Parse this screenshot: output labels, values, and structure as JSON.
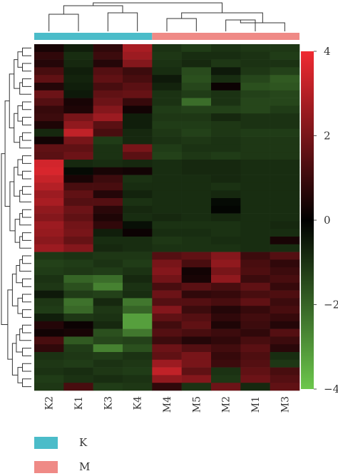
{
  "chart_data": {
    "type": "heatmap",
    "title": "",
    "xlabel": "",
    "ylabel": "",
    "columns": [
      "K2",
      "K1",
      "K3",
      "K4",
      "M4",
      "M5",
      "M2",
      "M1",
      "M3"
    ],
    "groups": [
      {
        "name": "K",
        "color": "#4bbcc9",
        "columns": [
          "K2",
          "K1",
          "K3",
          "K4"
        ]
      },
      {
        "name": "M",
        "color": "#ef8a86",
        "columns": [
          "M4",
          "M5",
          "M2",
          "M1",
          "M3"
        ]
      }
    ],
    "colorscale": {
      "min": -4,
      "max": 4,
      "ticks": [
        4,
        2,
        0,
        -2,
        -4
      ],
      "colors": {
        "high": "#f02a32",
        "mid": "#000000",
        "low": "#6cc74c"
      }
    },
    "rows": [
      {
        "values": [
          0.4,
          -0.6,
          0.8,
          2.8,
          -1.0,
          -1.2,
          -1.0,
          -1.1,
          -1.1
        ]
      },
      {
        "values": [
          0.8,
          -0.9,
          1.0,
          2.6,
          -1.1,
          -0.9,
          -0.9,
          -1.0,
          -1.2
        ]
      },
      {
        "values": [
          0.6,
          -0.8,
          0.6,
          2.2,
          -1.0,
          -0.8,
          -1.1,
          -1.0,
          -1.0
        ]
      },
      {
        "values": [
          1.2,
          -0.6,
          1.4,
          1.0,
          -0.9,
          -1.5,
          -0.5,
          -1.1,
          -1.3
        ]
      },
      {
        "values": [
          1.6,
          -0.7,
          1.6,
          1.2,
          -0.5,
          -1.6,
          -0.9,
          -1.4,
          -1.8
        ]
      },
      {
        "values": [
          0.6,
          -0.6,
          1.2,
          1.5,
          -0.7,
          -1.4,
          0.2,
          -1.6,
          -1.7
        ]
      },
      {
        "values": [
          1.8,
          -0.5,
          1.6,
          1.7,
          -1.0,
          -1.2,
          -1.0,
          -1.3,
          -1.4
        ]
      },
      {
        "values": [
          1.4,
          0.4,
          1.8,
          0.9,
          -1.0,
          -2.2,
          -1.0,
          -1.4,
          -1.4
        ]
      },
      {
        "values": [
          0.9,
          0.5,
          2.2,
          0.3,
          -1.2,
          -1.3,
          -1.3,
          -1.4,
          -1.2
        ]
      },
      {
        "values": [
          1.0,
          2.0,
          2.6,
          -0.6,
          -1.1,
          -1.1,
          -0.8,
          -1.0,
          -1.0
        ]
      },
      {
        "values": [
          0.5,
          2.4,
          1.5,
          -0.6,
          -1.2,
          -1.2,
          -1.1,
          -1.0,
          -1.0
        ]
      },
      {
        "values": [
          -0.8,
          3.2,
          1.2,
          -0.8,
          -1.1,
          -1.3,
          -1.1,
          -1.2,
          -1.2
        ]
      },
      {
        "values": [
          0.3,
          2.0,
          -1.2,
          -0.8,
          -1.0,
          -1.1,
          -1.0,
          -1.1,
          -1.1
        ]
      },
      {
        "values": [
          1.6,
          1.6,
          -1.0,
          2.0,
          -1.2,
          -1.0,
          -1.0,
          -1.1,
          -1.1
        ]
      },
      {
        "values": [
          1.5,
          1.8,
          -1.0,
          1.5,
          -1.3,
          -1.1,
          -1.2,
          -1.1,
          -1.1
        ]
      },
      {
        "values": [
          3.5,
          -0.8,
          -0.9,
          -0.8,
          -0.9,
          -0.8,
          -0.8,
          -0.9,
          -0.9
        ]
      },
      {
        "values": [
          3.6,
          -0.2,
          0.4,
          0.3,
          -0.9,
          -0.8,
          -0.8,
          -0.9,
          -0.9
        ]
      },
      {
        "values": [
          3.3,
          0.4,
          1.0,
          -1.0,
          -0.9,
          -0.9,
          -0.8,
          -0.9,
          -0.9
        ]
      },
      {
        "values": [
          3.0,
          1.2,
          1.2,
          -0.9,
          -0.9,
          -0.9,
          -1.0,
          -0.9,
          -0.9
        ]
      },
      {
        "values": [
          2.6,
          1.6,
          0.6,
          -0.7,
          -0.9,
          -0.9,
          -0.8,
          -0.9,
          -0.9
        ]
      },
      {
        "values": [
          2.8,
          1.4,
          1.4,
          -1.0,
          -0.9,
          -0.9,
          -0.2,
          -0.9,
          -0.9
        ]
      },
      {
        "values": [
          2.4,
          1.8,
          0.7,
          -0.8,
          -0.9,
          -0.9,
          -0.1,
          -0.9,
          -0.9
        ]
      },
      {
        "values": [
          2.2,
          1.6,
          0.5,
          -0.9,
          -0.8,
          -0.9,
          -0.8,
          -0.9,
          -0.9
        ]
      },
      {
        "values": [
          2.6,
          1.9,
          0.8,
          -0.3,
          -1.0,
          -1.0,
          -1.0,
          -0.9,
          -0.8
        ]
      },
      {
        "values": [
          2.5,
          2.0,
          -0.6,
          0.2,
          -0.9,
          -0.9,
          -1.0,
          -0.9,
          -0.9
        ]
      },
      {
        "values": [
          2.3,
          1.7,
          -0.9,
          -0.9,
          -1.1,
          -1.0,
          -0.9,
          -0.9,
          0.4
        ]
      },
      {
        "values": [
          2.6,
          2.2,
          -0.8,
          -0.9,
          -1.0,
          -1.0,
          -1.0,
          -0.9,
          -0.9
        ]
      },
      {
        "values": [
          -1.1,
          -1.0,
          -1.1,
          -1.1,
          1.4,
          1.6,
          2.2,
          1.0,
          1.4
        ]
      },
      {
        "values": [
          -1.3,
          -1.2,
          -1.0,
          -1.2,
          2.0,
          1.2,
          2.4,
          1.2,
          0.8
        ]
      },
      {
        "values": [
          -1.2,
          -1.1,
          -1.2,
          -1.0,
          2.2,
          0.3,
          2.0,
          1.3,
          1.0
        ]
      },
      {
        "values": [
          -1.0,
          -2.0,
          -2.2,
          -0.8,
          1.9,
          0.4,
          2.4,
          1.0,
          1.2
        ]
      },
      {
        "values": [
          -1.1,
          -1.6,
          -2.6,
          -1.0,
          1.2,
          1.5,
          1.2,
          1.6,
          0.9
        ]
      },
      {
        "values": [
          -0.5,
          -1.2,
          -1.3,
          -0.9,
          1.8,
          0.8,
          0.9,
          1.2,
          1.3
        ]
      },
      {
        "values": [
          -1.1,
          -2.3,
          -0.8,
          -2.4,
          1.4,
          1.4,
          1.2,
          1.6,
          1.0
        ]
      },
      {
        "values": [
          -1.2,
          -2.1,
          -1.1,
          -2.0,
          2.2,
          1.0,
          0.6,
          0.9,
          1.2
        ]
      },
      {
        "values": [
          -0.6,
          -1.1,
          -1.0,
          -3.2,
          1.6,
          1.4,
          0.8,
          1.1,
          0.9
        ]
      },
      {
        "values": [
          0.6,
          0.2,
          -0.8,
          -3.2,
          1.1,
          1.6,
          0.5,
          1.0,
          0.6
        ]
      },
      {
        "values": [
          0.3,
          0.4,
          -1.6,
          -2.4,
          1.4,
          1.2,
          1.0,
          0.8,
          1.4
        ]
      },
      {
        "values": [
          1.2,
          -1.8,
          -1.4,
          -1.3,
          1.0,
          0.6,
          0.8,
          1.2,
          1.0
        ]
      },
      {
        "values": [
          0.8,
          -1.2,
          -2.6,
          -1.6,
          1.8,
          1.4,
          1.1,
          1.5,
          0.7
        ]
      },
      {
        "values": [
          -1.0,
          -1.1,
          -1.2,
          -1.0,
          1.6,
          2.0,
          0.9,
          1.3,
          -0.9
        ]
      },
      {
        "values": [
          -1.1,
          -1.2,
          -1.0,
          -1.1,
          2.6,
          2.0,
          1.0,
          1.4,
          -1.1
        ]
      },
      {
        "values": [
          -1.0,
          -0.9,
          -1.1,
          -1.2,
          3.2,
          1.6,
          -1.0,
          1.6,
          1.2
        ]
      },
      {
        "values": [
          -1.2,
          -1.0,
          -0.9,
          -1.0,
          2.4,
          2.2,
          -1.1,
          1.8,
          1.4
        ]
      },
      {
        "values": [
          -1.1,
          1.2,
          -1.2,
          -1.1,
          0.8,
          -1.0,
          1.8,
          -0.8,
          1.6
        ]
      }
    ]
  },
  "legend": [
    {
      "label": "K",
      "color": "#4bbcc9"
    },
    {
      "label": "M",
      "color": "#ef8a86"
    }
  ]
}
